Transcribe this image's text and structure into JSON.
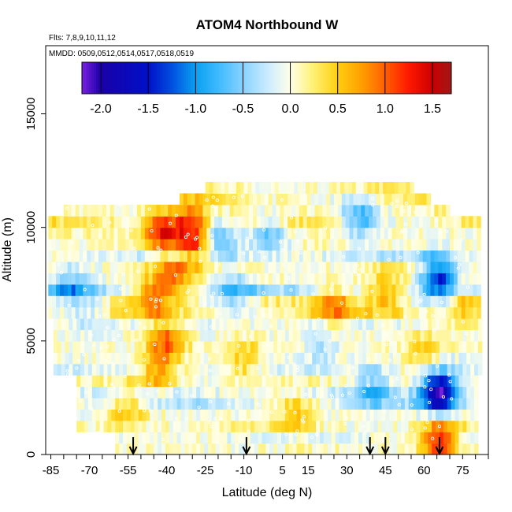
{
  "chart_data": {
    "type": "heatmap",
    "title": "ATOM4 Northbound W",
    "notes": {
      "flights": "Flts: 7,8,9,10,11,12",
      "dates": "MMDD: 0509,0512,0514,0517,0518,0519"
    },
    "xlabel": "Latitude (deg N)",
    "ylabel": "Altitude (m)",
    "xlim": [
      -87,
      85
    ],
    "ylim": [
      0,
      18000
    ],
    "x_ticks": [
      -85,
      -70,
      -55,
      -40,
      -25,
      -10,
      5,
      15,
      30,
      45,
      60,
      75
    ],
    "x_tick_labels": [
      "-85",
      "-70",
      "-55",
      "-40",
      "-25",
      "-10",
      "5",
      "15",
      "30",
      "45",
      "60",
      "75"
    ],
    "x_minor_step": 5,
    "y_ticks": [
      0,
      5000,
      10000,
      15000
    ],
    "y_tick_labels": [
      "0",
      "5000",
      "10000",
      "15000"
    ],
    "colorbar": {
      "range": [
        -2.2,
        1.7
      ],
      "ticks": [
        -2.0,
        -1.5,
        -1.0,
        -0.5,
        0.0,
        0.5,
        1.0,
        1.5
      ],
      "tick_labels": [
        "-2.0",
        "-1.5",
        "-1.0",
        "-0.5",
        "0.0",
        "0.5",
        "1.0",
        "1.5"
      ],
      "colors": [
        [
          -2.2,
          "#7a20e0"
        ],
        [
          -2.0,
          "#1a00a8"
        ],
        [
          -1.5,
          "#0010c8"
        ],
        [
          -1.25,
          "#0050e0"
        ],
        [
          -1.0,
          "#0aa0f0"
        ],
        [
          -0.75,
          "#40bbff"
        ],
        [
          -0.5,
          "#88d2ff"
        ],
        [
          -0.25,
          "#c8ebff"
        ],
        [
          0.0,
          "#ffffe8"
        ],
        [
          0.25,
          "#fff070"
        ],
        [
          0.5,
          "#ffcf10"
        ],
        [
          0.75,
          "#ffa000"
        ],
        [
          1.0,
          "#ff6000"
        ],
        [
          1.25,
          "#ff1800"
        ],
        [
          1.5,
          "#cc0000"
        ],
        [
          1.7,
          "#a01818"
        ]
      ]
    },
    "arrows_lat": [
      -53,
      -9,
      39,
      45,
      66
    ],
    "altitude_bands_m": [
      500,
      1000,
      1500,
      2000,
      2500,
      3000,
      3500,
      4000,
      4500,
      5000,
      5500,
      6000,
      6500,
      7000,
      7500,
      8000,
      8500,
      9000,
      9500,
      10000,
      10500,
      11000,
      11500,
      12000
    ],
    "features": [
      {
        "lat": -31,
        "alt": 10200,
        "value": 1.0
      },
      {
        "lat": -42,
        "alt": 9800,
        "value": 1.2
      },
      {
        "lat": -28,
        "alt": 9200,
        "value": 0.9
      },
      {
        "lat": -37,
        "alt": 7800,
        "value": 0.8
      },
      {
        "lat": -45,
        "alt": 7000,
        "value": 0.8
      },
      {
        "lat": -40,
        "alt": 5000,
        "value": 1.0
      },
      {
        "lat": -44,
        "alt": 3600,
        "value": 0.6
      },
      {
        "lat": -78,
        "alt": 7300,
        "value": -0.7
      },
      {
        "lat": -70,
        "alt": 6500,
        "value": -0.5
      },
      {
        "lat": -20,
        "alt": 9500,
        "value": -0.8
      },
      {
        "lat": -14,
        "alt": 7200,
        "value": -0.6
      },
      {
        "lat": 0,
        "alt": 9800,
        "value": -0.7
      },
      {
        "lat": 35,
        "alt": 10400,
        "value": -0.8
      },
      {
        "lat": 25,
        "alt": 6600,
        "value": 0.6
      },
      {
        "lat": 45,
        "alt": 7200,
        "value": 0.6
      },
      {
        "lat": 40,
        "alt": 3000,
        "value": -0.6
      },
      {
        "lat": 20,
        "alt": 4800,
        "value": -0.3
      },
      {
        "lat": 66,
        "alt": 2800,
        "value": -2.0
      },
      {
        "lat": 66,
        "alt": 7800,
        "value": -1.5
      },
      {
        "lat": 66,
        "alt": 600,
        "value": 1.3
      },
      {
        "lat": 60,
        "alt": 4600,
        "value": 0.5
      },
      {
        "lat": 75,
        "alt": 6600,
        "value": 0.5
      },
      {
        "lat": -55,
        "alt": 2000,
        "value": 0.6
      },
      {
        "lat": 10,
        "alt": 1800,
        "value": 0.5
      },
      {
        "lat": -10,
        "alt": 4200,
        "value": 0.5
      }
    ]
  }
}
